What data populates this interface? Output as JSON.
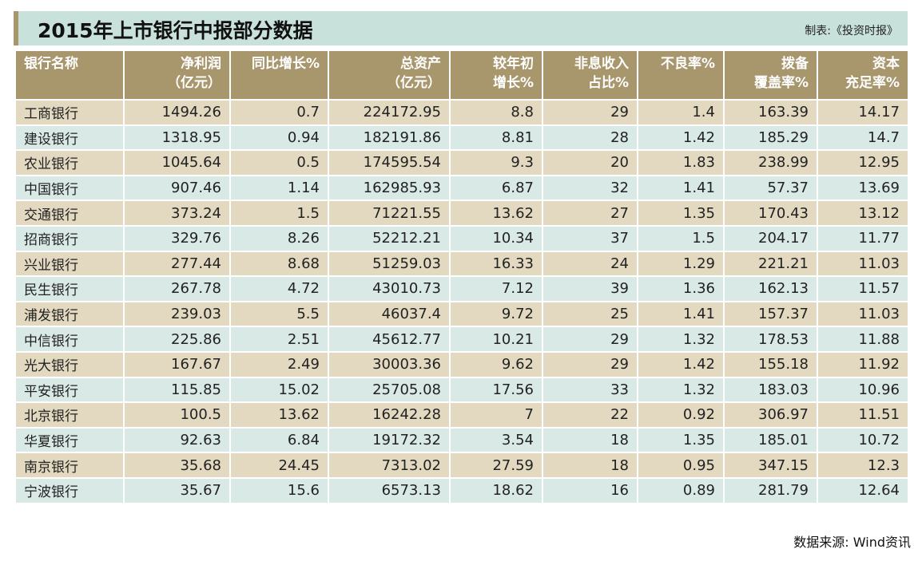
{
  "title": "2015年上市银行中报部分数据",
  "credit": "制表:《投资时报》",
  "source": "数据来源: Wind资讯",
  "colors": {
    "title_bg": "#c9e1db",
    "accent": "#a8956a",
    "header_bg": "#a8966c",
    "row_odd": "#e2d9c0",
    "row_even": "#d9e9e5"
  },
  "chart_data": {
    "type": "table",
    "columns": [
      [
        "银行名称"
      ],
      [
        "净利润",
        "（亿元）"
      ],
      [
        "同比增长%"
      ],
      [
        "总资产",
        "（亿元）"
      ],
      [
        "较年初",
        "增长%"
      ],
      [
        "非息收入",
        "占比%"
      ],
      [
        "不良率%"
      ],
      [
        "拨备",
        "覆盖率%"
      ],
      [
        "资本",
        "充足率%"
      ]
    ],
    "rows": [
      [
        "工商银行",
        "1494.26",
        "0.7",
        "224172.95",
        "8.8",
        "29",
        "1.4",
        "163.39",
        "14.17"
      ],
      [
        "建设银行",
        "1318.95",
        "0.94",
        "182191.86",
        "8.81",
        "28",
        "1.42",
        "185.29",
        "14.7"
      ],
      [
        "农业银行",
        "1045.64",
        "0.5",
        "174595.54",
        "9.3",
        "20",
        "1.83",
        "238.99",
        "12.95"
      ],
      [
        "中国银行",
        "907.46",
        "1.14",
        "162985.93",
        "6.87",
        "32",
        "1.41",
        "57.37",
        "13.69"
      ],
      [
        "交通银行",
        "373.24",
        "1.5",
        "71221.55",
        "13.62",
        "27",
        "1.35",
        "170.43",
        "13.12"
      ],
      [
        "招商银行",
        "329.76",
        "8.26",
        "52212.21",
        "10.34",
        "37",
        "1.5",
        "204.17",
        "11.77"
      ],
      [
        "兴业银行",
        "277.44",
        "8.68",
        "51259.03",
        "16.33",
        "24",
        "1.29",
        "221.21",
        "11.03"
      ],
      [
        "民生银行",
        "267.78",
        "4.72",
        "43010.73",
        "7.12",
        "39",
        "1.36",
        "162.13",
        "11.57"
      ],
      [
        "浦发银行",
        "239.03",
        "5.5",
        "46037.4",
        "9.72",
        "25",
        "1.41",
        "157.37",
        "11.03"
      ],
      [
        "中信银行",
        "225.86",
        "2.51",
        "45612.77",
        "10.21",
        "29",
        "1.32",
        "178.53",
        "11.88"
      ],
      [
        "光大银行",
        "167.67",
        "2.49",
        "30003.36",
        "9.62",
        "29",
        "1.42",
        "155.18",
        "11.92"
      ],
      [
        "平安银行",
        "115.85",
        "15.02",
        "25705.08",
        "17.56",
        "33",
        "1.32",
        "183.03",
        "10.96"
      ],
      [
        "北京银行",
        "100.5",
        "13.62",
        "16242.28",
        "7",
        "22",
        "0.92",
        "306.97",
        "11.51"
      ],
      [
        "华夏银行",
        "92.63",
        "6.84",
        "19172.32",
        "3.54",
        "18",
        "1.35",
        "185.01",
        "10.72"
      ],
      [
        "南京银行",
        "35.68",
        "24.45",
        "7313.02",
        "27.59",
        "18",
        "0.95",
        "347.15",
        "12.3"
      ],
      [
        "宁波银行",
        "35.67",
        "15.6",
        "6573.13",
        "18.62",
        "16",
        "0.89",
        "281.79",
        "12.64"
      ]
    ]
  }
}
